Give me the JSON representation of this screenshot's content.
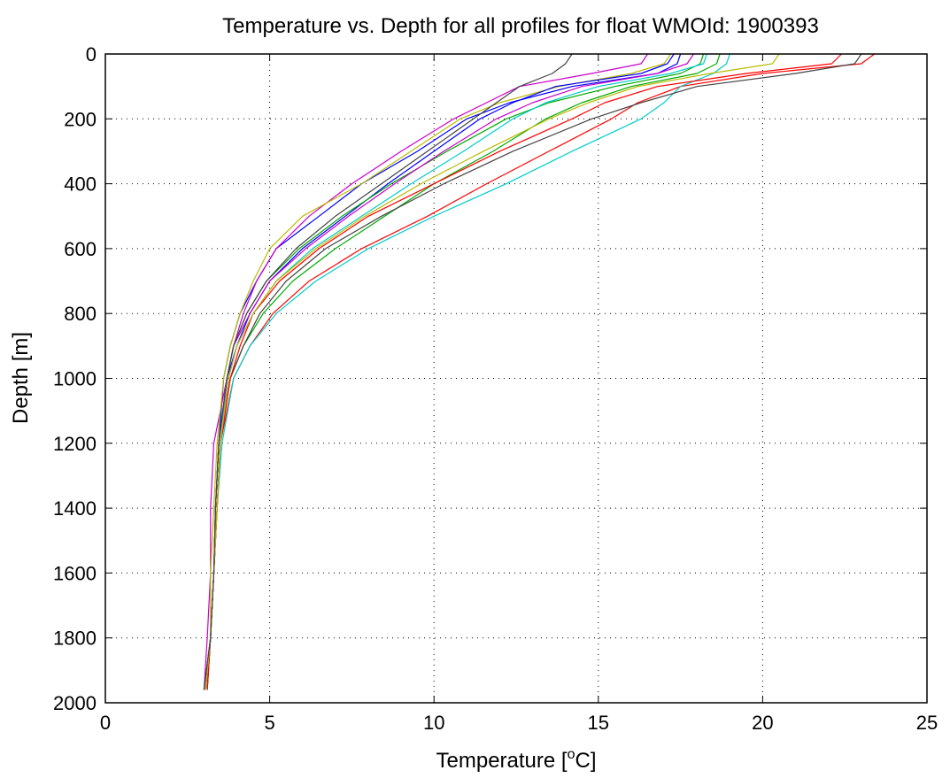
{
  "chart_data": {
    "type": "line",
    "title": "Temperature vs. Depth for all profiles for float WMOId: 1900393",
    "xlabel_prefix": "Temperature [",
    "xlabel_sup": "o",
    "xlabel_suffix": "C]",
    "ylabel": "Depth [m]",
    "xlim": [
      0,
      25
    ],
    "ylim": [
      0,
      2000
    ],
    "y_reversed": true,
    "grid": true,
    "legend": "none",
    "xticks": [
      "0",
      "5",
      "10",
      "15",
      "20",
      "25"
    ],
    "yticks": [
      "0",
      "200",
      "400",
      "600",
      "800",
      "1000",
      "1200",
      "1400",
      "1600",
      "1800",
      "2000"
    ],
    "series_colors": [
      "#0000ff",
      "#00aa00",
      "#ff0000",
      "#00cccc",
      "#cc00cc",
      "#bbbb00",
      "#444444"
    ],
    "depths": [
      0,
      30,
      60,
      100,
      150,
      200,
      300,
      400,
      500,
      600,
      700,
      800,
      900,
      1000,
      1200,
      1400,
      1600,
      1800,
      1960
    ],
    "series": [
      {
        "values": [
          17.5,
          17.4,
          16.8,
          14.2,
          12.3,
          11.0,
          9.5,
          7.8,
          6.5,
          5.2,
          4.6,
          4.1,
          3.8,
          3.6,
          3.45,
          3.35,
          3.3,
          3.2,
          3.0
        ]
      },
      {
        "values": [
          18.7,
          18.6,
          18.0,
          16.0,
          14.5,
          13.4,
          11.8,
          10.0,
          8.5,
          7.0,
          5.7,
          4.8,
          4.2,
          3.8,
          3.5,
          3.4,
          3.3,
          3.2,
          3.1
        ]
      },
      {
        "values": [
          23.4,
          23.0,
          20.0,
          17.5,
          16.2,
          15.4,
          13.5,
          11.6,
          9.8,
          7.8,
          6.2,
          5.1,
          4.4,
          3.9,
          3.5,
          3.4,
          3.3,
          3.2,
          3.05
        ]
      },
      {
        "values": [
          19.0,
          18.9,
          18.5,
          17.5,
          17.0,
          16.3,
          14.2,
          12.2,
          10.0,
          8.0,
          6.4,
          5.2,
          4.4,
          3.9,
          3.55,
          3.4,
          3.3,
          3.2,
          3.1
        ]
      },
      {
        "values": [
          16.5,
          16.3,
          14.8,
          12.6,
          11.6,
          10.6,
          9.0,
          7.5,
          6.2,
          5.2,
          4.6,
          4.2,
          3.9,
          3.7,
          3.3,
          3.2,
          3.2,
          3.1,
          3.0
        ]
      },
      {
        "values": [
          17.2,
          17.0,
          16.0,
          13.8,
          12.0,
          10.8,
          9.3,
          7.8,
          6.0,
          5.0,
          4.5,
          4.1,
          3.8,
          3.6,
          3.4,
          3.3,
          3.2,
          3.2,
          3.0
        ]
      },
      {
        "values": [
          23.0,
          22.8,
          21.0,
          18.0,
          16.3,
          14.8,
          12.4,
          10.3,
          8.4,
          6.7,
          5.5,
          4.7,
          4.2,
          3.8,
          3.5,
          3.4,
          3.3,
          3.2,
          3.1
        ]
      },
      {
        "values": [
          17.3,
          17.1,
          16.3,
          13.7,
          12.4,
          11.4,
          10.0,
          8.6,
          7.3,
          6.0,
          5.0,
          4.4,
          4.0,
          3.7,
          3.45,
          3.35,
          3.3,
          3.2,
          3.05
        ]
      },
      {
        "values": [
          18.2,
          18.1,
          17.5,
          15.5,
          13.5,
          12.2,
          10.4,
          8.7,
          7.2,
          5.9,
          4.9,
          4.3,
          3.9,
          3.7,
          3.45,
          3.35,
          3.3,
          3.2,
          3.05
        ]
      },
      {
        "values": [
          22.4,
          22.1,
          19.5,
          16.8,
          15.2,
          14.2,
          12.0,
          10.0,
          8.0,
          6.5,
          5.3,
          4.5,
          4.1,
          3.8,
          3.5,
          3.4,
          3.3,
          3.2,
          3.1
        ]
      },
      {
        "values": [
          18.3,
          18.2,
          17.2,
          15.0,
          13.4,
          12.4,
          10.9,
          9.3,
          7.8,
          6.3,
          5.2,
          4.5,
          4.0,
          3.75,
          3.45,
          3.35,
          3.3,
          3.2,
          3.05
        ]
      },
      {
        "values": [
          17.9,
          17.7,
          16.8,
          14.5,
          13.0,
          11.9,
          10.3,
          8.8,
          7.4,
          6.1,
          5.0,
          4.4,
          3.9,
          3.7,
          3.45,
          3.35,
          3.3,
          3.2,
          3.0
        ]
      },
      {
        "values": [
          20.5,
          20.3,
          18.4,
          16.2,
          14.7,
          13.5,
          11.5,
          9.6,
          7.9,
          6.4,
          5.2,
          4.5,
          4.0,
          3.75,
          3.5,
          3.4,
          3.3,
          3.2,
          3.05
        ]
      },
      {
        "values": [
          14.2,
          14.0,
          13.6,
          12.6,
          11.9,
          11.2,
          9.8,
          8.4,
          7.0,
          5.8,
          4.9,
          4.3,
          3.9,
          3.7,
          3.45,
          3.35,
          3.3,
          3.2,
          3.0
        ]
      }
    ]
  }
}
